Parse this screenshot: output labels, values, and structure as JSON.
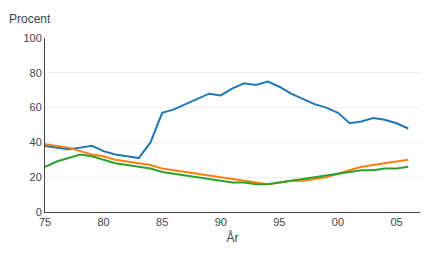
{
  "chart_data": {
    "type": "line",
    "ylabel": "Procent",
    "xlabel": "År",
    "x": [
      75,
      76,
      77,
      78,
      79,
      80,
      81,
      82,
      83,
      84,
      85,
      86,
      87,
      88,
      89,
      90,
      91,
      92,
      93,
      94,
      95,
      96,
      97,
      98,
      99,
      100,
      101,
      102,
      103,
      104,
      105,
      106
    ],
    "series": [
      {
        "values": [
          38,
          37,
          36,
          37,
          38,
          35,
          33,
          32,
          31,
          40,
          57,
          59,
          62,
          65,
          68,
          67,
          71,
          74,
          73,
          75,
          72,
          68,
          65,
          62,
          60,
          57,
          51,
          52,
          54,
          53,
          51,
          48
        ]
      },
      {
        "values": [
          39,
          38,
          37,
          35,
          33,
          32,
          30,
          29,
          28,
          27,
          25,
          24,
          23,
          22,
          21,
          20,
          19,
          18,
          17,
          16,
          17,
          18,
          18,
          19,
          20,
          22,
          24,
          26,
          27,
          28,
          29,
          30
        ]
      },
      {
        "values": [
          26,
          29,
          31,
          33,
          32,
          30,
          28,
          27,
          26,
          25,
          23,
          22,
          21,
          20,
          19,
          18,
          17,
          17,
          16,
          16,
          17,
          18,
          19,
          20,
          21,
          22,
          23,
          24,
          24,
          25,
          25,
          26
        ]
      }
    ],
    "xlim": [
      75,
      107
    ],
    "xticks": [
      75,
      80,
      85,
      90,
      95,
      {
        "value": 100,
        "label": "00"
      },
      {
        "value": 105,
        "label": "05"
      }
    ],
    "ylim": [
      0,
      100
    ],
    "yticks": [
      0,
      20,
      40,
      60,
      80,
      100
    ],
    "grid": "y"
  }
}
